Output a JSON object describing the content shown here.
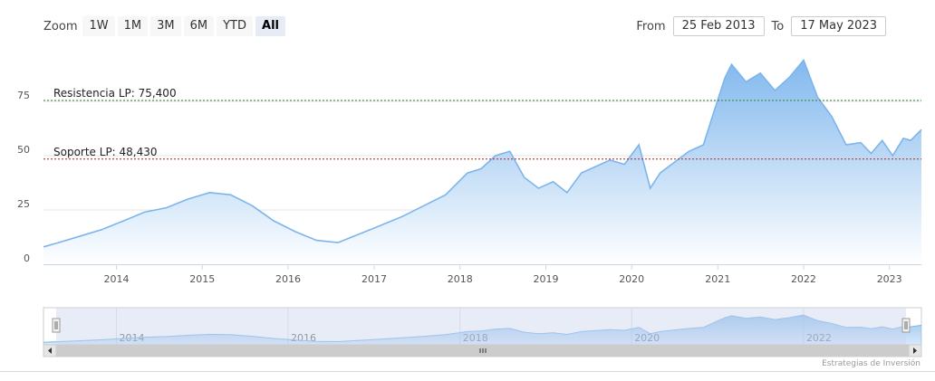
{
  "toolbar": {
    "zoom_label": "Zoom",
    "buttons": [
      "1W",
      "1M",
      "3M",
      "6M",
      "YTD",
      "All"
    ],
    "active": "All"
  },
  "range": {
    "from_label": "From",
    "from_value": "25 Feb 2013",
    "to_label": "To",
    "to_value": "17 May 2023"
  },
  "credit": "Estrategias de Inversión",
  "colors": {
    "area_top": "#7cb5ec",
    "area_bottom": "#ffffff",
    "line": "#7cb5ec",
    "resistance": "#2e7d32",
    "support": "#b71c1c",
    "navigator_mask": "#c9d5ee"
  },
  "chart_data": {
    "type": "area",
    "title": "",
    "xlabel": "",
    "ylabel": "",
    "ylim": [
      0,
      100
    ],
    "y_ticks": [
      0,
      25,
      50,
      75
    ],
    "x_ticks": [
      "2014",
      "2015",
      "2016",
      "2017",
      "2018",
      "2019",
      "2020",
      "2021",
      "2022",
      "2023"
    ],
    "navigator_ticks": [
      "2014",
      "2016",
      "2018",
      "2020",
      "2022"
    ],
    "x_range": [
      "2013-02-25",
      "2023-05-17"
    ],
    "series": [
      {
        "x": [
          "2013-02-25",
          "2013-05-01",
          "2013-08-01",
          "2013-11-01",
          "2014-02-01",
          "2014-05-01",
          "2014-08-01",
          "2014-11-01",
          "2015-02-01",
          "2015-05-01",
          "2015-08-01",
          "2015-11-01",
          "2016-02-01",
          "2016-05-01",
          "2016-08-01",
          "2016-11-01",
          "2017-02-01",
          "2017-05-01",
          "2017-08-01",
          "2017-11-01",
          "2018-02-01",
          "2018-04-01",
          "2018-06-01",
          "2018-08-01",
          "2018-10-01",
          "2018-12-01",
          "2019-02-01",
          "2019-04-01",
          "2019-06-01",
          "2019-08-01",
          "2019-10-01",
          "2019-12-01",
          "2020-02-01",
          "2020-03-20",
          "2020-05-01",
          "2020-07-01",
          "2020-09-01",
          "2020-11-01",
          "2020-12-15",
          "2021-02-01",
          "2021-03-01",
          "2021-05-01",
          "2021-07-01",
          "2021-09-01",
          "2021-11-01",
          "2022-01-01",
          "2022-03-01",
          "2022-05-01",
          "2022-07-01",
          "2022-09-01",
          "2022-10-15",
          "2022-12-01",
          "2023-01-15",
          "2023-03-01",
          "2023-04-01",
          "2023-05-17"
        ],
        "values": [
          8,
          10,
          13,
          16,
          20,
          24,
          26,
          30,
          33,
          32,
          27,
          20,
          15,
          11,
          10,
          14,
          18,
          22,
          27,
          32,
          42,
          44,
          50,
          52,
          40,
          35,
          38,
          33,
          42,
          45,
          48,
          46,
          55,
          35,
          42,
          47,
          52,
          55,
          70,
          86,
          92,
          84,
          88,
          80,
          86,
          94,
          77,
          68,
          55,
          56,
          51,
          57,
          50,
          58,
          57,
          62
        ]
      }
    ],
    "annotations": [
      {
        "label": "Resistencia LP: 75,400",
        "value": 75.4,
        "style": "dashed",
        "color": "#2e7d32"
      },
      {
        "label": "Soporte LP: 48,430",
        "value": 48.43,
        "style": "dashed",
        "color": "#b71c1c"
      }
    ]
  }
}
